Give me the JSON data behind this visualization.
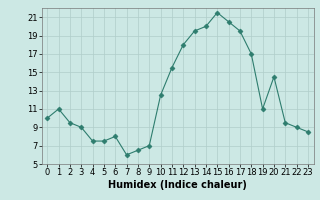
{
  "x": [
    0,
    1,
    2,
    3,
    4,
    5,
    6,
    7,
    8,
    9,
    10,
    11,
    12,
    13,
    14,
    15,
    16,
    17,
    18,
    19,
    20,
    21,
    22,
    23
  ],
  "y": [
    10,
    11,
    9.5,
    9,
    7.5,
    7.5,
    8,
    6,
    6.5,
    7,
    12.5,
    15.5,
    18,
    19.5,
    20,
    21.5,
    20.5,
    19.5,
    17,
    11,
    14.5,
    9.5,
    9,
    8.5
  ],
  "line_color": "#2e7d6e",
  "marker": "D",
  "marker_size": 2.5,
  "bg_color": "#cce8e4",
  "grid_color": "#b0ceca",
  "xlabel": "Humidex (Indice chaleur)",
  "ylim": [
    5,
    22
  ],
  "xlim": [
    -0.5,
    23.5
  ],
  "yticks": [
    5,
    7,
    9,
    11,
    13,
    15,
    17,
    19,
    21
  ],
  "xticks": [
    0,
    1,
    2,
    3,
    4,
    5,
    6,
    7,
    8,
    9,
    10,
    11,
    12,
    13,
    14,
    15,
    16,
    17,
    18,
    19,
    20,
    21,
    22,
    23
  ],
  "xlabel_fontsize": 7,
  "tick_fontsize": 6
}
